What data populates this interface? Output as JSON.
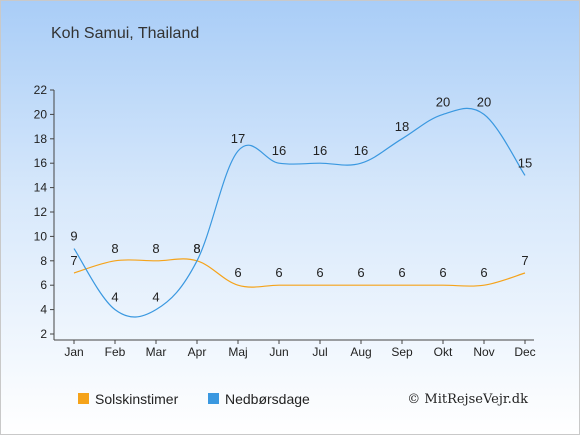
{
  "chart_data": {
    "type": "line",
    "title": "Koh Samui, Thailand",
    "categories": [
      "Jan",
      "Feb",
      "Mar",
      "Apr",
      "Maj",
      "Jun",
      "Jul",
      "Aug",
      "Sep",
      "Okt",
      "Nov",
      "Dec"
    ],
    "ylim": [
      2,
      22
    ],
    "yticks": [
      2,
      4,
      6,
      8,
      10,
      12,
      14,
      16,
      18,
      20,
      22
    ],
    "series": [
      {
        "name": "Solskinstimer",
        "color": "#f5a31a",
        "values": [
          7,
          8,
          8,
          8,
          6,
          6,
          6,
          6,
          6,
          6,
          6,
          7
        ]
      },
      {
        "name": "Nedbørsdage",
        "color": "#3a98e0",
        "values": [
          9,
          4,
          4,
          8,
          17,
          16,
          16,
          16,
          18,
          20,
          20,
          15
        ]
      }
    ],
    "legend_position": "bottom-left",
    "grid": false,
    "copyright": "© MitRejseVejr.dk"
  }
}
